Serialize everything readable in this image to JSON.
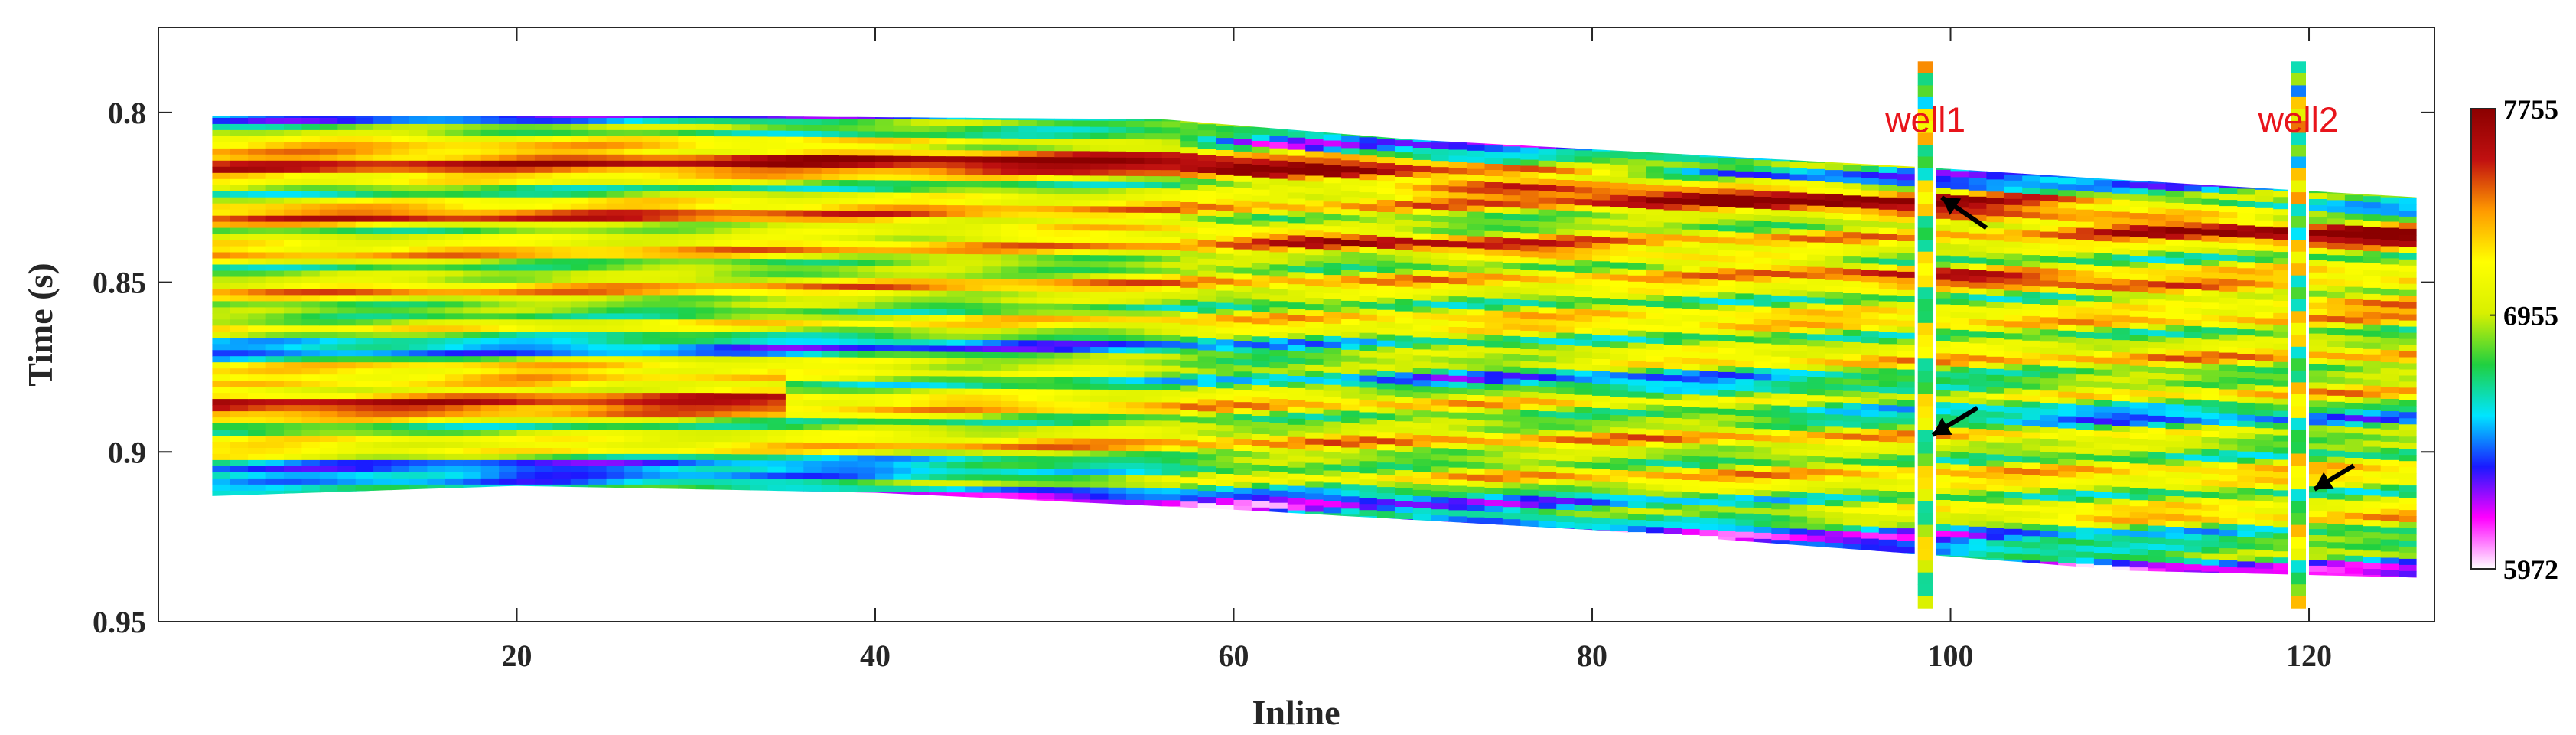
{
  "chart_data": {
    "type": "heatmap",
    "title": "",
    "xlabel": "Inline",
    "ylabel": "Time (s)",
    "xlim": [
      0,
      127
    ],
    "ylim": [
      0.95,
      0.775
    ],
    "x_ticks": [
      {
        "value": 20,
        "label": "20"
      },
      {
        "value": 40,
        "label": "40"
      },
      {
        "value": 60,
        "label": "60"
      },
      {
        "value": 80,
        "label": "80"
      },
      {
        "value": 100,
        "label": "100"
      },
      {
        "value": 120,
        "label": "120"
      }
    ],
    "y_ticks": [
      {
        "value": 0.8,
        "label": "0.8"
      },
      {
        "value": 0.85,
        "label": "0.85"
      },
      {
        "value": 0.9,
        "label": "0.9"
      },
      {
        "value": 0.95,
        "label": "0.95"
      }
    ],
    "colorbar": {
      "min": 5972,
      "max": 7755,
      "ticks": [
        {
          "value": 7755,
          "label": "7755"
        },
        {
          "value": 6955,
          "label": "6955"
        },
        {
          "value": 5972,
          "label": "5972"
        }
      ],
      "colormap": [
        "#ffffff",
        "#ff00ff",
        "#1a1aff",
        "#00e5ff",
        "#20d040",
        "#d8f000",
        "#ffff00",
        "#ff9a00",
        "#c01010",
        "#8b0000"
      ]
    },
    "data_extent": {
      "x_start": 3,
      "x_end": 126,
      "top_boundary": [
        [
          3,
          0.801
        ],
        [
          30,
          0.801
        ],
        [
          56,
          0.802
        ],
        [
          70,
          0.808
        ],
        [
          84,
          0.812
        ],
        [
          98,
          0.816
        ],
        [
          110,
          0.82
        ],
        [
          126,
          0.825
        ]
      ],
      "bottom_boundary": [
        [
          3,
          0.913
        ],
        [
          20,
          0.91
        ],
        [
          40,
          0.912
        ],
        [
          60,
          0.917
        ],
        [
          80,
          0.923
        ],
        [
          98,
          0.93
        ],
        [
          110,
          0.935
        ],
        [
          126,
          0.937
        ]
      ]
    },
    "wells": [
      {
        "name": "well1",
        "inline": 98.6,
        "time_top": 0.785,
        "time_bottom": 0.944
      },
      {
        "name": "well2",
        "inline": 119.4,
        "time_top": 0.785,
        "time_bottom": 0.944
      }
    ],
    "annotations": [
      {
        "type": "arrow",
        "tip": [
          99.5,
          0.825
        ],
        "tail": [
          102,
          0.834
        ]
      },
      {
        "type": "arrow",
        "tip": [
          99,
          0.895
        ],
        "tail": [
          101.5,
          0.887
        ]
      },
      {
        "type": "arrow",
        "tip": [
          120.3,
          0.911
        ],
        "tail": [
          122.5,
          0.904
        ]
      }
    ]
  }
}
